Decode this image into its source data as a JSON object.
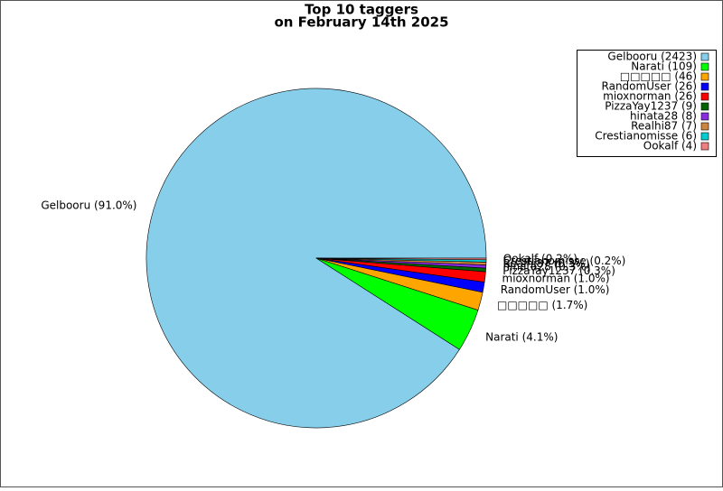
{
  "chart_data": {
    "type": "pie",
    "title": "Top 10 taggers",
    "subtitle": "on February 14th 2025",
    "values": [
      2423,
      109,
      46,
      26,
      26,
      9,
      8,
      7,
      6,
      4
    ],
    "value_labels": [
      "Gelbooru (91.0%)",
      "Narati (4.1%)",
      "□□□□□ (1.7%)",
      "RandomUser (1.0%)",
      "mioxnorman (1.0%)",
      "PizzaYay1237 (0.3%)",
      "hinata28 (0.3%)",
      "Realhi87 (0.3%)",
      "Crestianomisse (0.2%)",
      "Ookalf (0.2%)"
    ],
    "legend_labels": [
      "Gelbooru (2423)",
      "Narati (109)",
      "□□□□□ (46)",
      "RandomUser (26)",
      "mioxnorman (26)",
      "PizzaYay1237 (9)",
      "hinata28 (8)",
      "Realhi87 (7)",
      "Crestianomisse (6)",
      "Ookalf (4)"
    ],
    "colors": [
      "#87ceeb",
      "#00ff00",
      "#ffa500",
      "#0000ff",
      "#ff0000",
      "#006400",
      "#8a2be2",
      "#cd853f",
      "#00ced1",
      "#f08080"
    ],
    "legend": "upper right"
  }
}
